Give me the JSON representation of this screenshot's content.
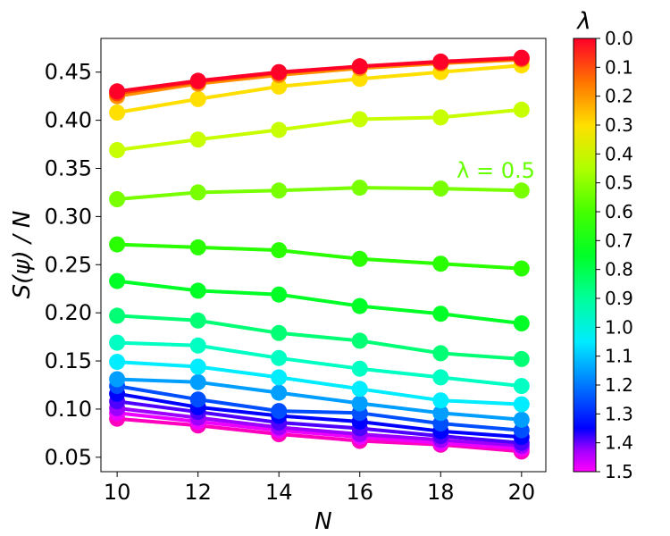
{
  "chart_data": {
    "type": "line",
    "title": "",
    "xlabel": "N",
    "ylabel": "S(ψ) / N",
    "x": [
      10,
      12,
      14,
      16,
      18,
      20
    ],
    "xlim": [
      9.6,
      20.6
    ],
    "ylim": [
      0.035,
      0.485
    ],
    "xticks": [
      "10",
      "12",
      "14",
      "16",
      "18",
      "20"
    ],
    "yticks": [
      "0.05",
      "0.10",
      "0.15",
      "0.20",
      "0.25",
      "0.30",
      "0.35",
      "0.40",
      "0.45"
    ],
    "grid": false,
    "colorbar": {
      "label": "λ",
      "min": 0.0,
      "max": 1.5,
      "ticks": [
        "0.0",
        "0.1",
        "0.2",
        "0.3",
        "0.4",
        "0.5",
        "0.6",
        "0.7",
        "0.8",
        "0.9",
        "1.0",
        "1.1",
        "1.2",
        "1.3",
        "1.4",
        "1.5"
      ],
      "colormap": "gist_rainbow"
    },
    "annotation": {
      "text": "λ = 0.5",
      "color": "#66ff00"
    },
    "series": [
      {
        "name": "λ=0.0",
        "color": "#ff0029",
        "values": [
          0.43,
          0.441,
          0.45,
          0.456,
          0.461,
          0.465
        ]
      },
      {
        "name": "λ=0.1",
        "color": "#ff4200",
        "values": [
          0.428,
          0.44,
          0.449,
          0.456,
          0.46,
          0.464
        ]
      },
      {
        "name": "λ=0.2",
        "color": "#ff9000",
        "values": [
          0.425,
          0.438,
          0.447,
          0.454,
          0.459,
          0.463
        ]
      },
      {
        "name": "λ=0.3",
        "color": "#ffdf00",
        "values": [
          0.408,
          0.422,
          0.435,
          0.443,
          0.45,
          0.457
        ]
      },
      {
        "name": "λ=0.4",
        "color": "#c7ff00",
        "values": [
          0.369,
          0.38,
          0.39,
          0.401,
          0.403,
          0.411
        ]
      },
      {
        "name": "λ=0.5",
        "color": "#78ff00",
        "values": [
          0.318,
          0.325,
          0.327,
          0.33,
          0.329,
          0.327
        ]
      },
      {
        "name": "λ=0.6",
        "color": "#29ff00",
        "values": [
          0.271,
          0.268,
          0.265,
          0.256,
          0.251,
          0.246
        ]
      },
      {
        "name": "λ=0.7",
        "color": "#00ff26",
        "values": [
          0.233,
          0.223,
          0.219,
          0.207,
          0.199,
          0.189
        ]
      },
      {
        "name": "λ=0.8",
        "color": "#00ff75",
        "values": [
          0.197,
          0.192,
          0.179,
          0.171,
          0.158,
          0.152
        ]
      },
      {
        "name": "λ=0.9",
        "color": "#00ffc3",
        "values": [
          0.169,
          0.166,
          0.153,
          0.142,
          0.133,
          0.124
        ]
      },
      {
        "name": "λ=1.0",
        "color": "#00ecff",
        "values": [
          0.149,
          0.144,
          0.133,
          0.121,
          0.109,
          0.105
        ]
      },
      {
        "name": "λ=1.1",
        "color": "#009eff",
        "values": [
          0.131,
          0.128,
          0.117,
          0.106,
          0.096,
          0.089
        ]
      },
      {
        "name": "λ=1.2",
        "color": "#004fff",
        "values": [
          0.124,
          0.11,
          0.098,
          0.096,
          0.085,
          0.078
        ]
      },
      {
        "name": "λ=1.3",
        "color": "#0000ff",
        "values": [
          0.116,
          0.102,
          0.093,
          0.087,
          0.077,
          0.071
        ]
      },
      {
        "name": "λ=1.4",
        "color": "#4e00ff",
        "values": [
          0.108,
          0.097,
          0.086,
          0.08,
          0.072,
          0.065
        ]
      },
      {
        "name": "λ=1.5a",
        "color": "#9e00ff",
        "values": [
          0.101,
          0.091,
          0.081,
          0.074,
          0.068,
          0.062
        ]
      },
      {
        "name": "λ=1.5b",
        "color": "#ed00ff",
        "values": [
          0.096,
          0.087,
          0.078,
          0.071,
          0.065,
          0.059
        ]
      },
      {
        "name": "λ=1.5c",
        "color": "#ff00bf",
        "values": [
          0.09,
          0.083,
          0.074,
          0.067,
          0.063,
          0.056
        ]
      }
    ]
  }
}
